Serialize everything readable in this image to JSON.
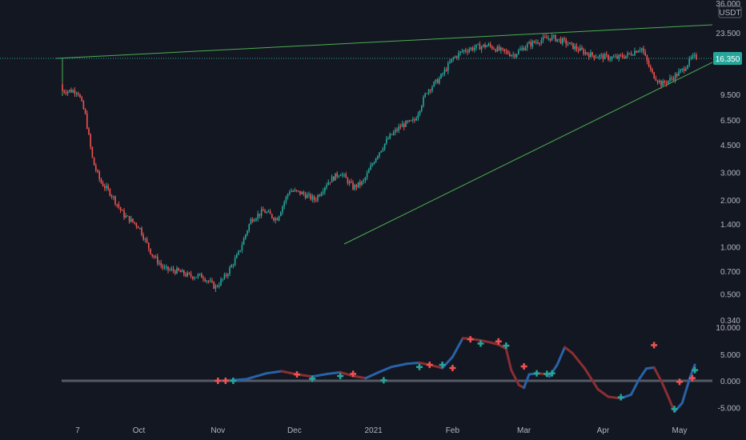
{
  "chart_data": [
    {
      "type": "candlestick",
      "quote_currency": "USDT",
      "last_price_label": "16.350",
      "price_scale": "log",
      "y_tick_labels": [
        "36.000",
        "23.500",
        "9.500",
        "6.500",
        "4.500",
        "3.000",
        "2.000",
        "1.400",
        "1.000",
        "0.700",
        "0.500",
        "0.340"
      ],
      "y_tick_values": [
        36.0,
        23.5,
        9.5,
        6.5,
        4.5,
        3.0,
        2.0,
        1.4,
        1.0,
        0.7,
        0.5,
        0.34
      ],
      "ylim": [
        0.34,
        36.0
      ],
      "x_tick_labels": [
        "7",
        "Oct",
        "Nov",
        "Dec",
        "2021",
        "Feb",
        "Mar",
        "Apr",
        "May"
      ],
      "x": [
        "2020-09-07",
        "2020-09-10",
        "2020-09-13",
        "2020-09-16",
        "2020-09-20",
        "2020-09-25",
        "2020-10-01",
        "2020-10-06",
        "2020-10-11",
        "2020-10-16",
        "2020-10-21",
        "2020-10-26",
        "2020-10-31",
        "2020-11-04",
        "2020-11-09",
        "2020-11-14",
        "2020-11-19",
        "2020-11-24",
        "2020-11-29",
        "2020-12-04",
        "2020-12-09",
        "2020-12-14",
        "2020-12-19",
        "2020-12-24",
        "2020-12-28",
        "2021-01-02",
        "2021-01-07",
        "2021-01-12",
        "2021-01-17",
        "2021-01-22",
        "2021-01-27",
        "2021-02-01",
        "2021-02-05",
        "2021-02-10",
        "2021-02-15",
        "2021-02-20",
        "2021-02-25",
        "2021-03-02",
        "2021-03-07",
        "2021-03-12",
        "2021-03-17",
        "2021-03-22",
        "2021-03-27",
        "2021-04-01",
        "2021-04-06",
        "2021-04-11",
        "2021-04-16",
        "2021-04-20",
        "2021-04-24",
        "2021-04-28",
        "2021-05-02",
        "2021-05-06"
      ],
      "close": [
        10.0,
        7.0,
        3.5,
        2.6,
        2.2,
        1.6,
        1.35,
        0.9,
        0.72,
        0.7,
        0.65,
        0.65,
        0.55,
        0.65,
        0.9,
        1.5,
        1.7,
        1.5,
        2.3,
        2.2,
        2.0,
        2.6,
        3.0,
        2.4,
        2.6,
        3.8,
        5.0,
        6.0,
        6.4,
        10.0,
        12.0,
        16.0,
        18.0,
        19.0,
        19.5,
        18.0,
        17.0,
        19.5,
        21.0,
        22.0,
        20.5,
        18.5,
        17.0,
        16.5,
        16.2,
        17.0,
        19.0,
        13.0,
        11.0,
        12.0,
        13.5,
        16.35
      ],
      "indicator": {
        "y_tick_labels": [
          "10.000",
          "5.000",
          "0.000",
          "-5.000"
        ],
        "y_tick_values": [
          10,
          5,
          0,
          -5
        ],
        "ylim": [
          -6.3,
          10.0
        ],
        "x": [
          "2020-11-01",
          "2020-11-06",
          "2020-11-12",
          "2020-11-20",
          "2020-11-26",
          "2020-12-02",
          "2020-12-08",
          "2020-12-14",
          "2020-12-19",
          "2020-12-24",
          "2020-12-29",
          "2021-01-03",
          "2021-01-08",
          "2021-01-14",
          "2021-01-19",
          "2021-01-23",
          "2021-01-28",
          "2021-02-01",
          "2021-02-05",
          "2021-02-08",
          "2021-02-12",
          "2021-02-16",
          "2021-02-19",
          "2021-02-22",
          "2021-02-24",
          "2021-02-27",
          "2021-03-01",
          "2021-03-03",
          "2021-03-06",
          "2021-03-09",
          "2021-03-11",
          "2021-03-14",
          "2021-03-17",
          "2021-03-20",
          "2021-03-25",
          "2021-03-30",
          "2021-04-03",
          "2021-04-08",
          "2021-04-12",
          "2021-04-15",
          "2021-04-18",
          "2021-04-21",
          "2021-04-24",
          "2021-04-27",
          "2021-04-29",
          "2021-05-02",
          "2021-05-05",
          "2021-05-07"
        ],
        "values": [
          0,
          0.1,
          0.3,
          1.4,
          1.8,
          1.2,
          0.8,
          1.3,
          1.6,
          0.9,
          0.5,
          1.6,
          2.6,
          3.2,
          3.4,
          3.0,
          2.4,
          4.5,
          8.0,
          7.9,
          7.6,
          7.2,
          6.8,
          6.0,
          2.0,
          -0.8,
          -1.3,
          1.2,
          1.4,
          1.3,
          0.8,
          3.0,
          6.3,
          5.2,
          2.2,
          -1.6,
          -3.0,
          -3.3,
          -2.6,
          0.2,
          2.3,
          2.5,
          -0.2,
          -3.5,
          -5.8,
          -4.2,
          0.5,
          3.0
        ],
        "red_markers": [
          {
            "x": "2020-11-01",
            "y": 0
          },
          {
            "x": "2020-11-04",
            "y": 0
          },
          {
            "x": "2020-12-02",
            "y": 1.2
          },
          {
            "x": "2020-12-24",
            "y": 1.3
          },
          {
            "x": "2021-01-23",
            "y": 3.0
          },
          {
            "x": "2021-02-01",
            "y": 2.4
          },
          {
            "x": "2021-02-08",
            "y": 7.8
          },
          {
            "x": "2021-02-19",
            "y": 7.4
          },
          {
            "x": "2021-03-01",
            "y": 2.7
          },
          {
            "x": "2021-04-21",
            "y": 6.7
          },
          {
            "x": "2021-05-01",
            "y": -0.2
          },
          {
            "x": "2021-05-06",
            "y": 0.5
          }
        ],
        "green_markers": [
          {
            "x": "2020-11-07",
            "y": 0
          },
          {
            "x": "2020-12-08",
            "y": 0.4
          },
          {
            "x": "2020-12-19",
            "y": 0.9
          },
          {
            "x": "2021-01-05",
            "y": 0.1
          },
          {
            "x": "2021-01-19",
            "y": 2.6
          },
          {
            "x": "2021-01-28",
            "y": 3.0
          },
          {
            "x": "2021-02-12",
            "y": 7.0
          },
          {
            "x": "2021-02-22",
            "y": 6.6
          },
          {
            "x": "2021-03-06",
            "y": 1.4
          },
          {
            "x": "2021-03-10",
            "y": 1.3
          },
          {
            "x": "2021-03-12",
            "y": 1.4
          },
          {
            "x": "2021-04-08",
            "y": -3.1
          },
          {
            "x": "2021-04-29",
            "y": -5.3
          },
          {
            "x": "2021-05-07",
            "y": 2.0
          }
        ]
      }
    }
  ],
  "colors": {
    "background": "#131722",
    "up": "#26a69a",
    "down": "#ef5350",
    "trendline": "#4caf50",
    "indicator_up": "#2962a8",
    "indicator_down": "#8b2e33",
    "last_price_badge": "#26a69a",
    "axis_text": "#b2b5be"
  }
}
